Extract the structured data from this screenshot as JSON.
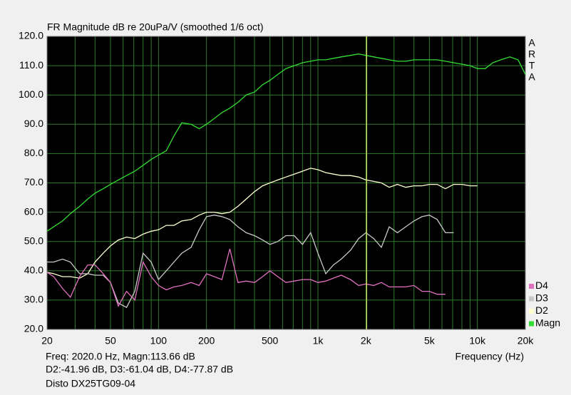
{
  "chart_data": {
    "type": "line",
    "title": "FR Magnitude dB re 20uPa/V (smoothed 1/6 oct)",
    "x_label": "Frequency (Hz)",
    "logo": [
      "A",
      "R",
      "T",
      "A"
    ],
    "readout": [
      "Freq: 2020.0 Hz, Magn:113.66 dB",
      "D2:-41.96 dB, D3:-61.04 dB, D4:-77.87 dB",
      "Disto DX25TG09-04"
    ],
    "cursor_freq": 2020,
    "x_log": true,
    "grid": true,
    "legend": "right",
    "xlim": [
      20,
      20000
    ],
    "ylim": [
      20,
      120
    ],
    "xticks": [
      20,
      50,
      100,
      200,
      500,
      {
        "value": 1000,
        "label": "1k"
      },
      {
        "value": 2000,
        "label": "2k"
      },
      {
        "value": 5000,
        "label": "5k"
      },
      {
        "value": 10000,
        "label": "10k"
      },
      {
        "value": 20000,
        "label": "20k"
      }
    ],
    "x_minor_grid": [
      30,
      40,
      60,
      70,
      80,
      90,
      300,
      400,
      600,
      700,
      800,
      900,
      3000,
      4000,
      6000,
      7000,
      8000,
      9000
    ],
    "yticks": [
      {
        "value": 20,
        "label": "20.0"
      },
      {
        "value": 30,
        "label": "30.0"
      },
      {
        "value": 40,
        "label": "40.0"
      },
      {
        "value": 50,
        "label": "50.0"
      },
      {
        "value": 60,
        "label": "60.0"
      },
      {
        "value": 70,
        "label": "70.0"
      },
      {
        "value": 80,
        "label": "80.0"
      },
      {
        "value": 90,
        "label": "90.0"
      },
      {
        "value": 100,
        "label": "100.0"
      },
      {
        "value": 110,
        "label": "110.0"
      },
      {
        "value": 120,
        "label": "120.0"
      }
    ],
    "x": [
      20,
      22,
      25,
      28,
      32,
      36,
      40,
      45,
      50,
      56,
      63,
      71,
      80,
      90,
      100,
      112,
      125,
      140,
      160,
      180,
      200,
      224,
      250,
      280,
      315,
      355,
      400,
      450,
      500,
      560,
      630,
      710,
      800,
      900,
      1000,
      1120,
      1250,
      1400,
      1600,
      1800,
      2000,
      2240,
      2500,
      2800,
      3150,
      3550,
      4000,
      4500,
      5000,
      5600,
      6300,
      7100,
      8000,
      9000,
      10000,
      11200,
      12500,
      14000,
      16000,
      18000,
      20000
    ],
    "series": [
      {
        "name": "Magn",
        "color": "#33dd33",
        "values": [
          53.5,
          55,
          57,
          59.5,
          62,
          64.5,
          66.5,
          68,
          69.5,
          71,
          72.5,
          74,
          76,
          78,
          79.5,
          81,
          86,
          90.5,
          90,
          88.5,
          90,
          92,
          94,
          95.5,
          97.5,
          100,
          101,
          103.5,
          105,
          107,
          109,
          110,
          111,
          111.5,
          112,
          112,
          112.5,
          113,
          113.5,
          114,
          113.5,
          113,
          112.5,
          112,
          111.5,
          111.5,
          112,
          112,
          112,
          112,
          111.5,
          111,
          110.5,
          110,
          109,
          109,
          111,
          112,
          113,
          112,
          107
        ]
      },
      {
        "name": "D2",
        "color": "#ffffd0",
        "values": [
          39.5,
          39,
          38,
          38,
          37.5,
          39,
          43,
          46,
          48.5,
          50.5,
          51.5,
          51,
          52.5,
          53.5,
          54,
          55.5,
          55.5,
          57,
          57.5,
          59,
          60,
          60,
          59.5,
          60,
          62,
          64.5,
          67,
          69,
          70,
          71,
          72,
          73,
          74,
          75,
          74.5,
          73.5,
          73,
          72.5,
          72.5,
          72,
          71,
          70.5,
          70,
          68.5,
          69.5,
          68.5,
          69,
          69,
          69.5,
          69.5,
          68,
          69.5,
          69.5,
          69,
          69,
          null,
          null,
          null,
          null,
          null,
          null
        ]
      },
      {
        "name": "D3",
        "color": "#c8c8c8",
        "values": [
          43,
          43,
          44,
          43,
          39,
          39,
          38.5,
          38.5,
          36,
          29,
          27.5,
          33,
          46,
          43,
          37,
          40,
          43,
          46,
          48,
          54,
          58.5,
          59,
          58.5,
          57.5,
          55,
          53,
          52,
          50.5,
          49,
          50,
          52,
          52,
          49,
          53,
          46,
          39,
          42,
          44,
          47,
          51,
          53,
          51,
          48,
          55,
          53,
          55,
          57,
          58.5,
          59,
          57.5,
          53,
          53,
          null,
          null,
          null,
          null,
          null,
          null,
          null,
          null,
          null
        ]
      },
      {
        "name": "D4",
        "color": "#e070c0",
        "values": [
          39.5,
          38,
          34,
          31,
          38,
          42,
          42,
          39,
          36,
          28,
          33,
          30,
          43,
          38,
          35,
          33.5,
          34.5,
          35,
          36,
          35,
          39,
          38,
          37,
          47.5,
          36,
          36.5,
          36,
          38,
          40,
          38,
          36,
          36.5,
          37,
          37,
          36,
          36.5,
          37.5,
          38.5,
          37,
          35,
          35.5,
          35,
          36,
          34.5,
          34.5,
          34.5,
          35,
          33,
          33,
          32,
          32,
          null,
          null,
          null,
          null,
          null,
          null,
          null,
          null,
          null,
          null
        ]
      }
    ]
  }
}
